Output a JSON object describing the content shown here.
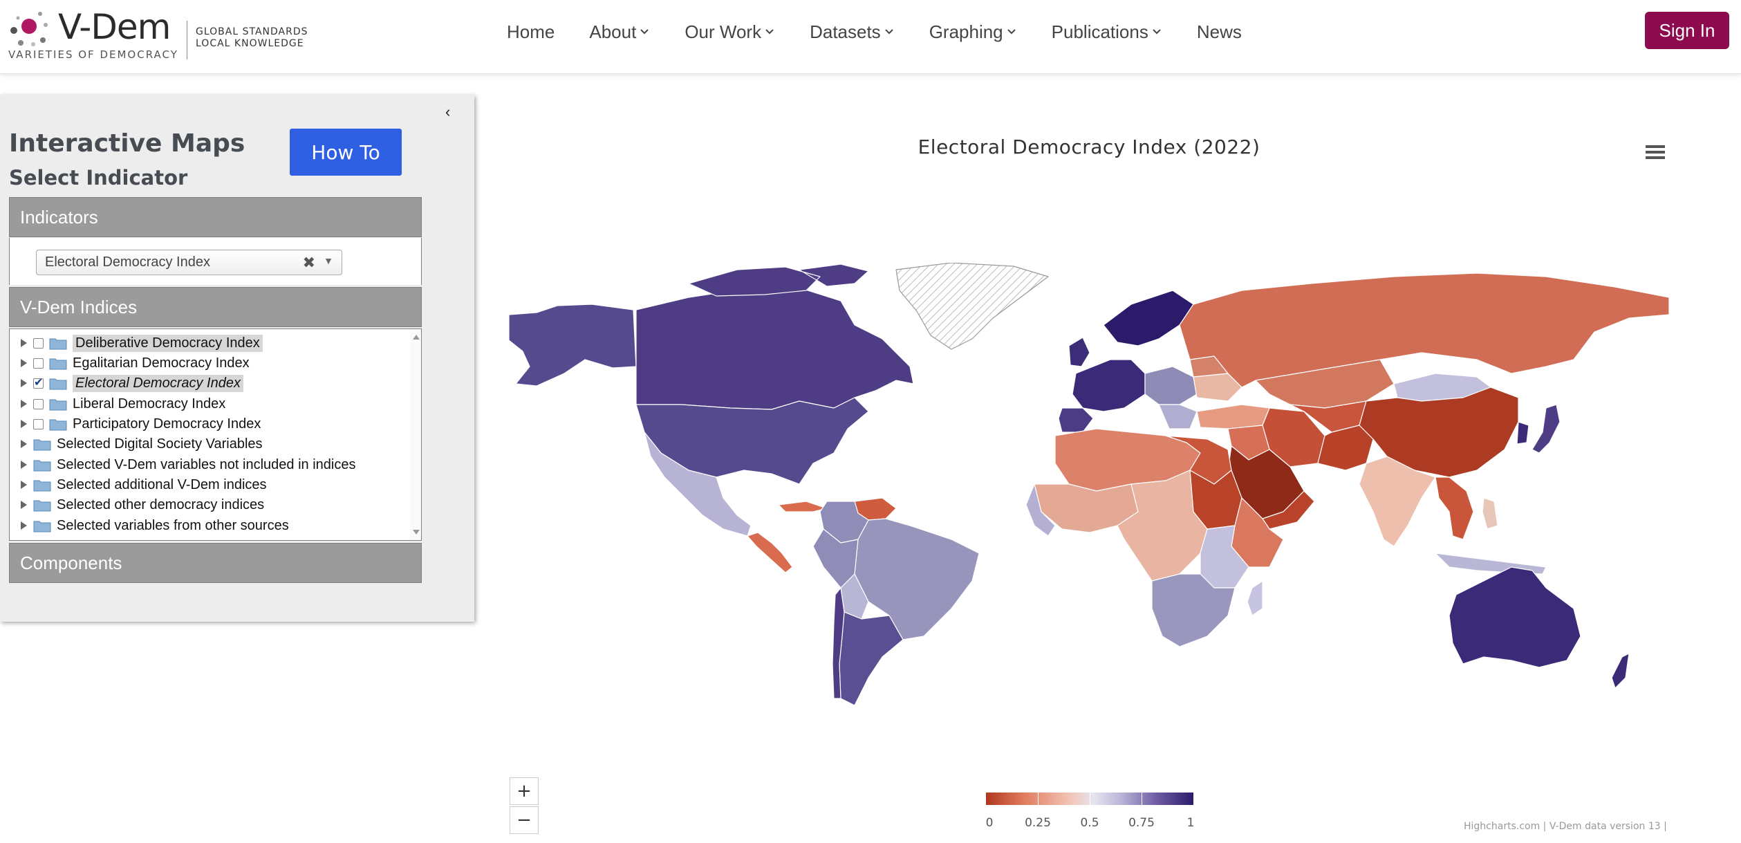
{
  "brand": {
    "name": "V-Dem",
    "subtitle": "VARIETIES OF DEMOCRACY",
    "tagline_1": "GLOBAL STANDARDS",
    "tagline_2": "LOCAL KNOWLEDGE"
  },
  "nav": {
    "items": [
      {
        "label": "Home",
        "dropdown": false
      },
      {
        "label": "About",
        "dropdown": true
      },
      {
        "label": "Our Work",
        "dropdown": true
      },
      {
        "label": "Datasets",
        "dropdown": true
      },
      {
        "label": "Graphing",
        "dropdown": true
      },
      {
        "label": "Publications",
        "dropdown": true
      },
      {
        "label": "News",
        "dropdown": false
      }
    ],
    "signin_label": "Sign In"
  },
  "panel": {
    "title": "Interactive Maps",
    "subtitle": "Select Indicator",
    "howto_label": "How To",
    "indicators_header": "Indicators",
    "indicator_selected": "Electoral Democracy Index",
    "vdem_header": "V-Dem Indices",
    "components_header": "Components",
    "tree": [
      {
        "label": "Deliberative Democracy Index",
        "checkbox": true,
        "checked": false
      },
      {
        "label": "Egalitarian Democracy Index",
        "checkbox": true,
        "checked": false
      },
      {
        "label": "Electoral Democracy Index",
        "checkbox": true,
        "checked": true
      },
      {
        "label": "Liberal Democracy Index",
        "checkbox": true,
        "checked": false
      },
      {
        "label": "Participatory Democracy Index",
        "checkbox": true,
        "checked": false
      },
      {
        "label": "Selected Digital Society Variables",
        "checkbox": false,
        "checked": false
      },
      {
        "label": "Selected V-Dem variables not included in indices",
        "checkbox": false,
        "checked": false
      },
      {
        "label": "Selected additional V-Dem indices",
        "checkbox": false,
        "checked": false
      },
      {
        "label": "Selected other democracy indices",
        "checkbox": false,
        "checked": false
      },
      {
        "label": "Selected variables from other sources",
        "checkbox": false,
        "checked": false
      }
    ]
  },
  "map": {
    "title": "Electoral Democracy Index (2022)",
    "zoom_in": "+",
    "zoom_out": "−",
    "legend": {
      "ticks": [
        "0",
        "0.25",
        "0.5",
        "0.75",
        "1"
      ],
      "colors": [
        "#b0361f",
        "#e07b5e",
        "#f2c3b4",
        "#e6e4f0",
        "#b9b6d8",
        "#6f5da3",
        "#2b1b6b"
      ]
    },
    "credits": "Highcharts.com | V-Dem data version 13 |"
  },
  "colors": {
    "accent_signin": "#8e0a4f",
    "accent_howto": "#2f5fe3",
    "section_header": "#9b9b9b"
  }
}
